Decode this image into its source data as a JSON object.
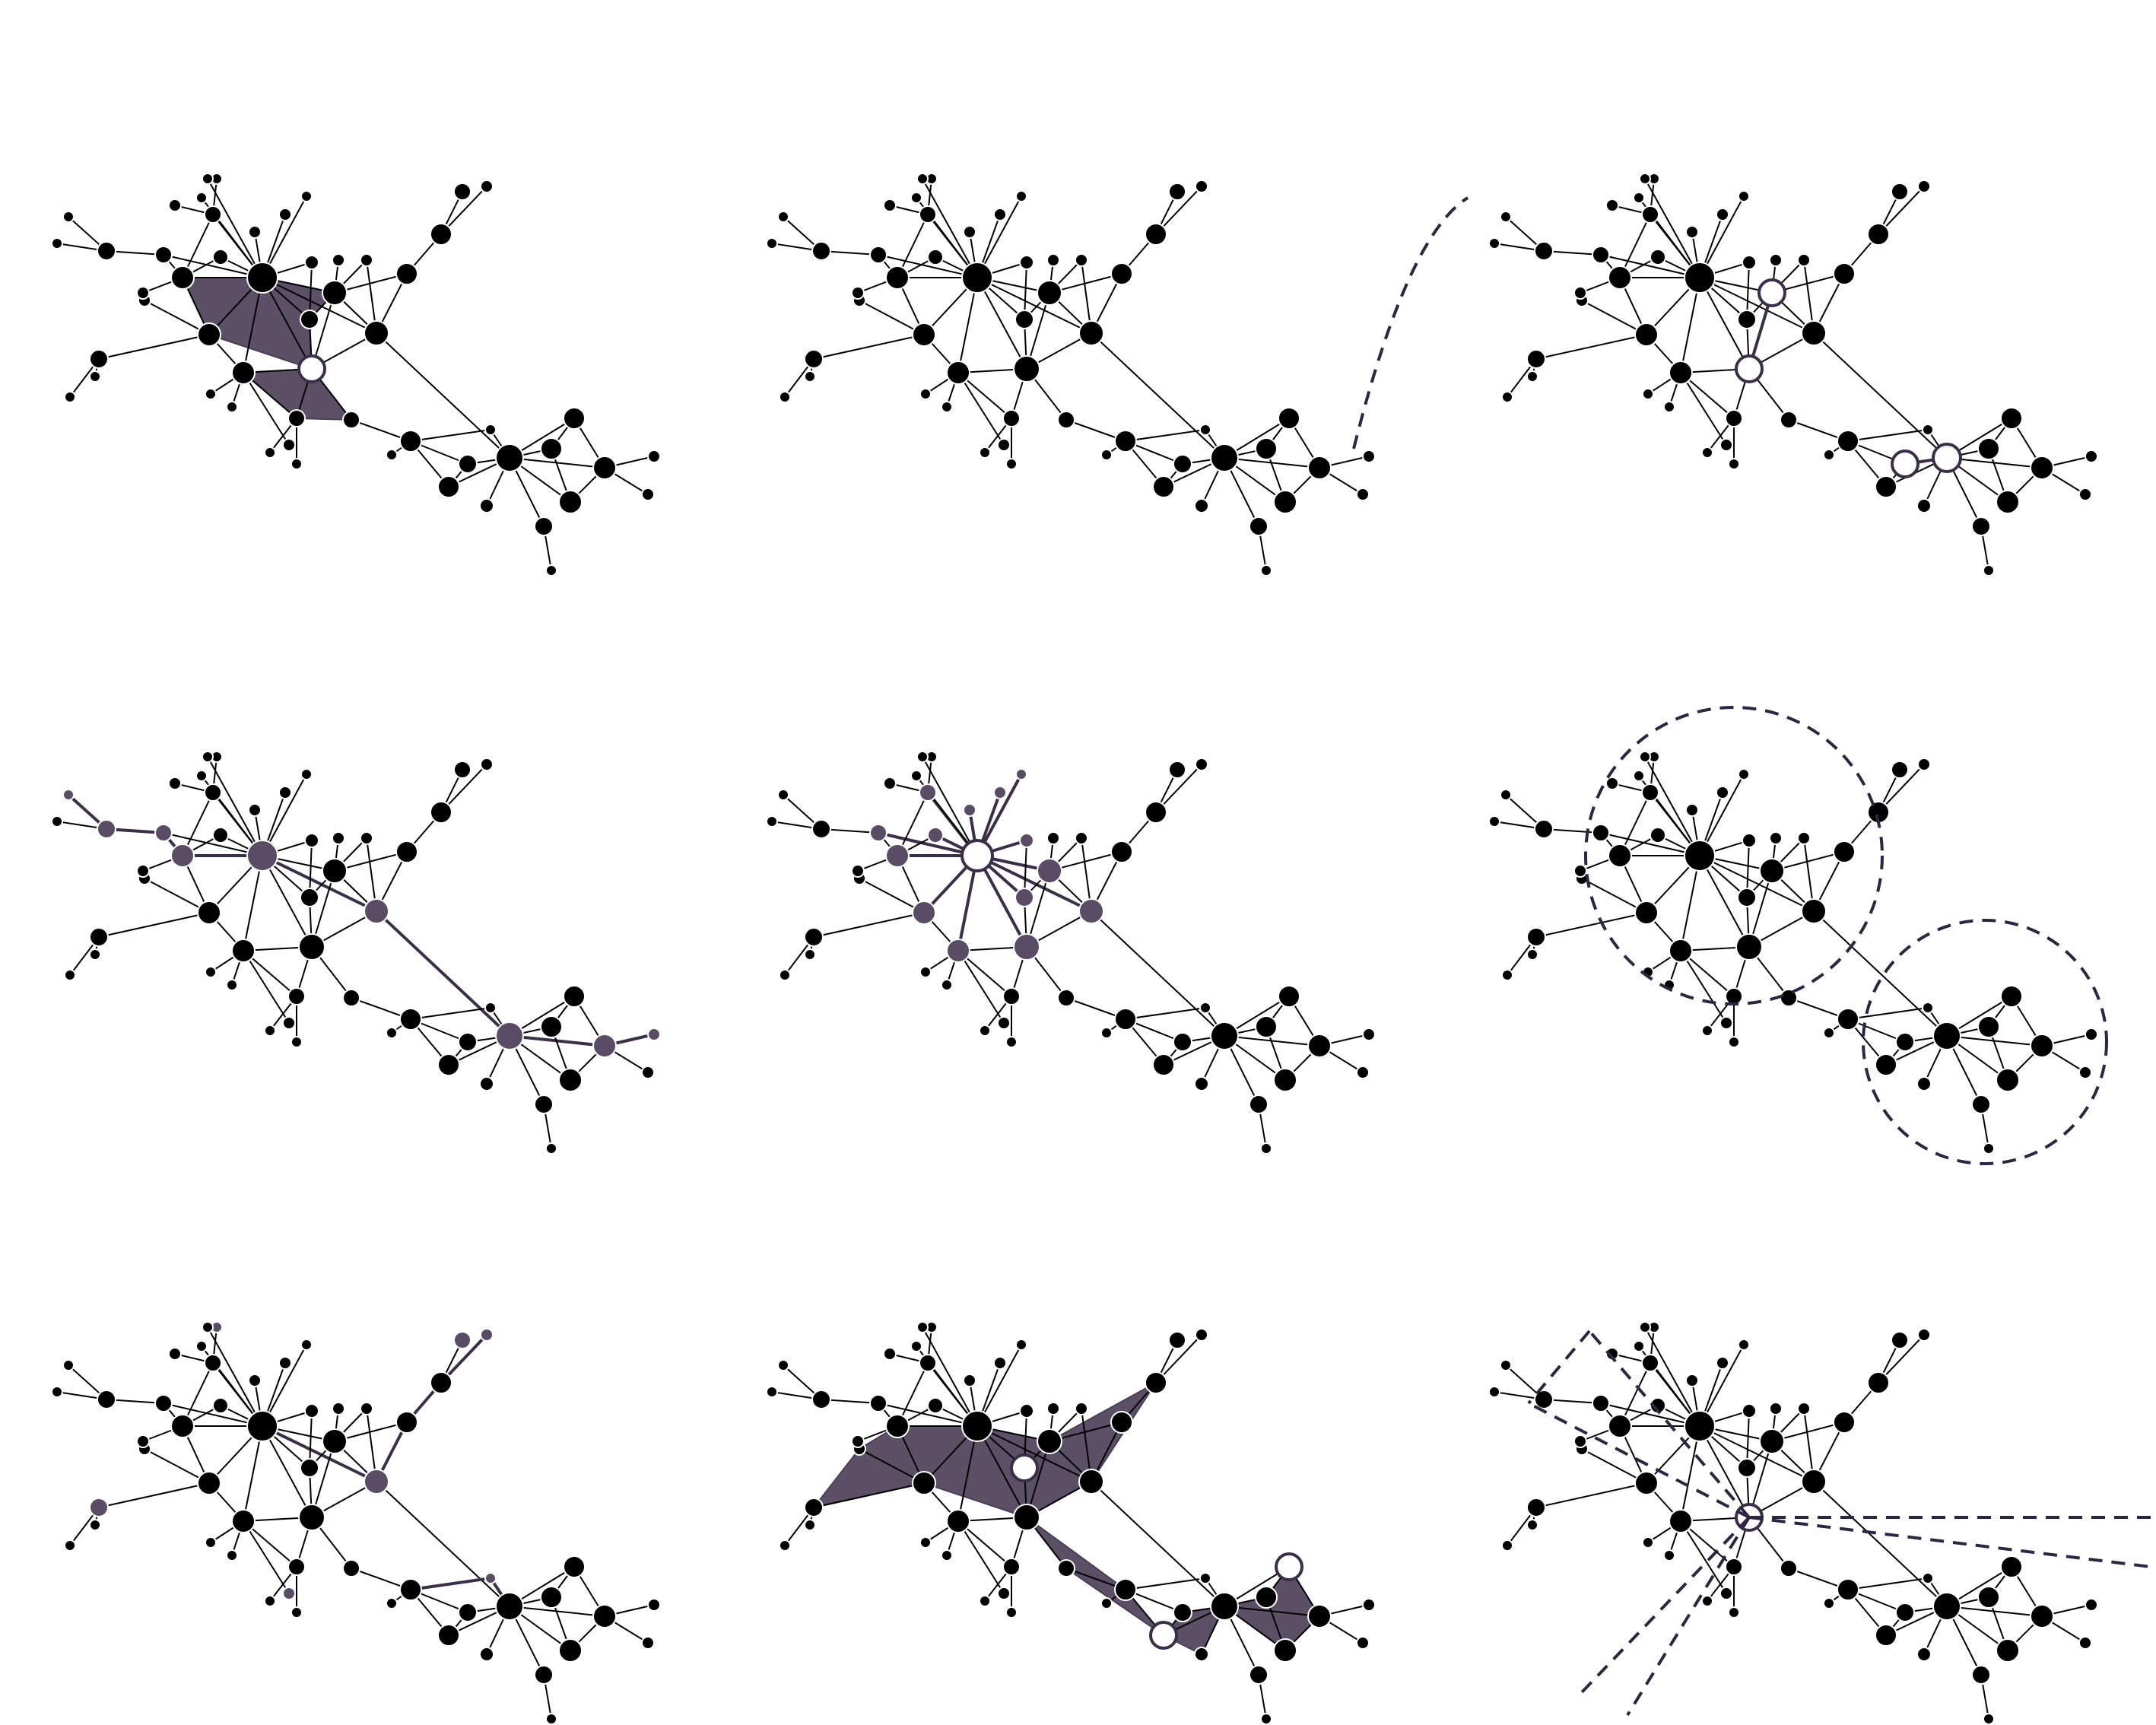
{
  "colors": {
    "node": "#000000",
    "edge": "#000000",
    "highlight": "#5a4c65",
    "fill": "#4a3d57",
    "dashed": "#2e2640",
    "open_node_fill": "#ffffff",
    "open_node_stroke": "#3a2f47"
  },
  "panels": [
    {
      "name": "clique-highlight-panel",
      "variant": "clique"
    },
    {
      "name": "graph-cut-panel",
      "variant": "cut"
    },
    {
      "name": "bridge-path-panel",
      "variant": "bridges"
    },
    {
      "name": "shortest-path-panel",
      "variant": "path"
    },
    {
      "name": "ego-network-panel",
      "variant": "ego"
    },
    {
      "name": "community-circles-panel",
      "variant": "communities"
    },
    {
      "name": "spanning-edges-panel",
      "variant": "spokes"
    },
    {
      "name": "dense-region-panel",
      "variant": "dense"
    },
    {
      "name": "angular-sectors-panel",
      "variant": "sectors"
    }
  ]
}
